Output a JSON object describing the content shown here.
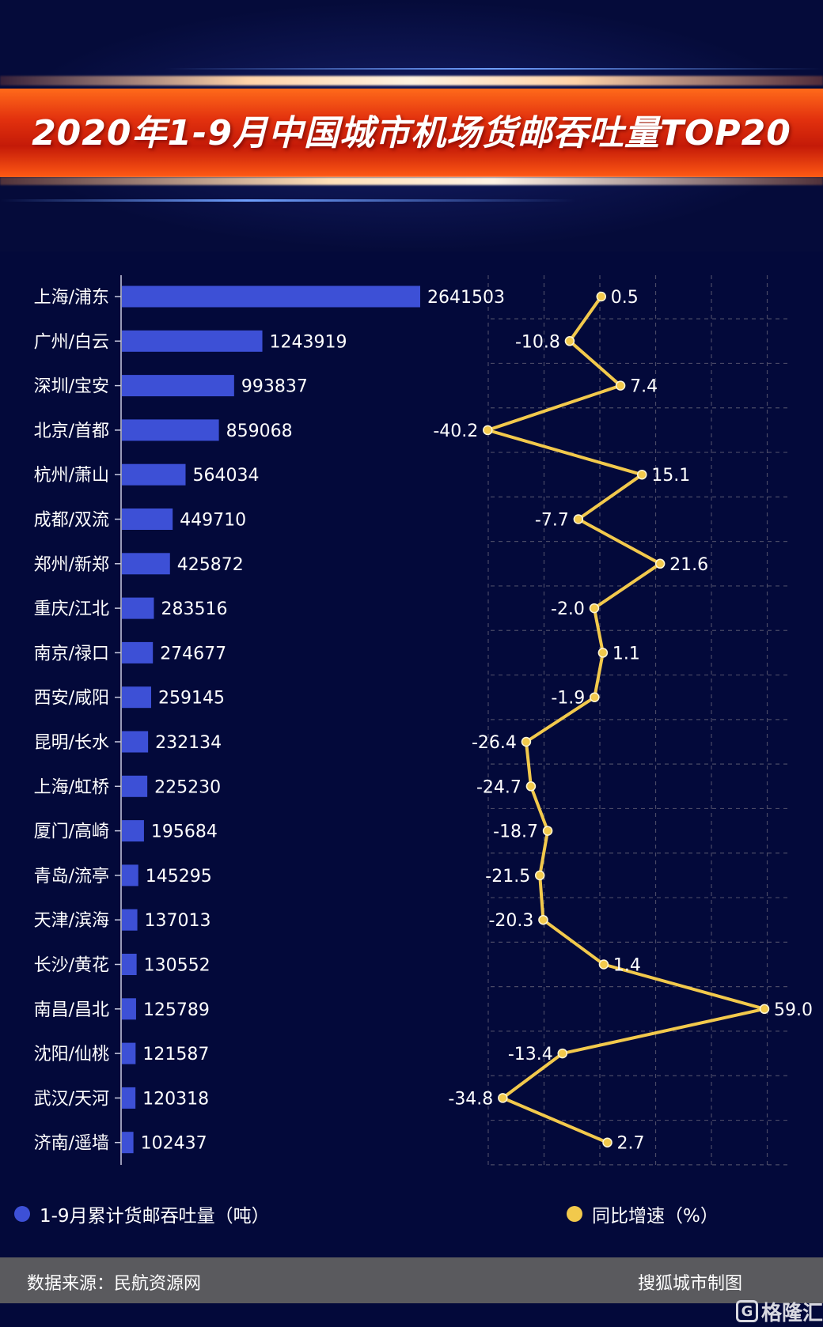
{
  "title": "2020年1-9月中国城市机场货邮吞吐量TOP20",
  "colors": {
    "bar": "#3d50d6",
    "line": "#f2c94c",
    "background": "#03093a"
  },
  "chart_data": {
    "type": "bar",
    "categories": [
      "上海/浦东",
      "广州/白云",
      "深圳/宝安",
      "北京/首都",
      "杭州/萧山",
      "成都/双流",
      "郑州/新郑",
      "重庆/江北",
      "南京/禄口",
      "西安/咸阳",
      "昆明/长水",
      "上海/虹桥",
      "厦门/高崎",
      "青岛/流亭",
      "天津/滨海",
      "长沙/黄花",
      "南昌/昌北",
      "沈阳/仙桃",
      "武汉/天河",
      "济南/遥墙"
    ],
    "series": [
      {
        "name": "1-9月累计货邮吞吐量（吨）",
        "type": "bar",
        "values": [
          2641503,
          1243919,
          993837,
          859068,
          564034,
          449710,
          425872,
          283516,
          274677,
          259145,
          232134,
          225230,
          195684,
          145295,
          137013,
          130552,
          125789,
          121587,
          120318,
          102437
        ],
        "labels": [
          "2641503",
          "1243919",
          "993837",
          "859068",
          "564034",
          "449710",
          "425872",
          "283516",
          "274677",
          "259145",
          "232134",
          "225230",
          "195684",
          "145295",
          "137013",
          "130552",
          "125789",
          "121587",
          "120318",
          "102437"
        ]
      },
      {
        "name": "同比增速（%）",
        "type": "line",
        "values": [
          0.5,
          -10.8,
          7.4,
          -40.2,
          15.1,
          -7.7,
          21.6,
          -2.0,
          1.1,
          -1.9,
          -26.4,
          -24.7,
          -18.7,
          -21.5,
          -20.3,
          1.4,
          59.0,
          -13.4,
          -34.8,
          2.7
        ],
        "labels": [
          "0.5",
          "-10.8",
          "7.4",
          "-40.2",
          "15.1",
          "-7.7",
          "21.6",
          "-2.0",
          "1.1",
          "-1.9",
          "-26.4",
          "-24.7",
          "-18.7",
          "-21.5",
          "-20.3",
          "1.4",
          "59.0",
          "-13.4",
          "-34.8",
          "2.7"
        ],
        "xlim": [
          -60,
          60
        ]
      }
    ],
    "grid": true,
    "legend_position": "bottom"
  },
  "legend": {
    "bar": "1-9月累计货邮吞吐量（吨）",
    "line": "同比增速（%）"
  },
  "footer": {
    "source": "数据来源：民航资源网",
    "maker": "搜狐城市制图"
  },
  "watermark": "格隆汇",
  "watermark_icon": "G"
}
